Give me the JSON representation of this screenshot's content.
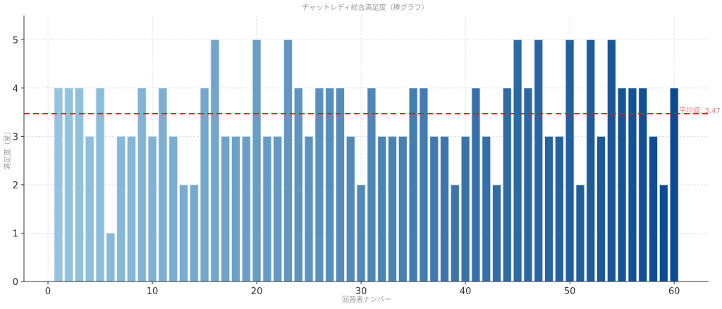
{
  "chart_data": {
    "type": "bar",
    "title": "チャットレディ総合満足度（棒グラフ）",
    "xlabel": "回答者ナンバー",
    "ylabel": "満足度（星）",
    "x": [
      1,
      2,
      3,
      4,
      5,
      6,
      7,
      8,
      9,
      10,
      11,
      12,
      13,
      14,
      15,
      16,
      17,
      18,
      19,
      20,
      21,
      22,
      23,
      24,
      25,
      26,
      27,
      28,
      29,
      30,
      31,
      32,
      33,
      34,
      35,
      36,
      37,
      38,
      39,
      40,
      41,
      42,
      43,
      44,
      45,
      46,
      47,
      48,
      49,
      50,
      51,
      52,
      53,
      54,
      55,
      56,
      57,
      58,
      59,
      60
    ],
    "values": [
      4,
      4,
      4,
      3,
      4,
      1,
      3,
      3,
      4,
      3,
      4,
      3,
      2,
      2,
      4,
      5,
      3,
      3,
      3,
      5,
      3,
      3,
      5,
      4,
      3,
      4,
      4,
      4,
      3,
      2,
      4,
      3,
      3,
      3,
      4,
      4,
      3,
      3,
      2,
      3,
      4,
      3,
      2,
      4,
      5,
      4,
      5,
      3,
      3,
      5,
      2,
      5,
      3,
      5,
      4,
      4,
      4,
      3,
      2,
      4
    ],
    "xlim": [
      -2.3,
      63.3
    ],
    "ylim": [
      0,
      5.5
    ],
    "xticks": [
      0,
      10,
      20,
      30,
      40,
      50,
      60
    ],
    "yticks": [
      0,
      1,
      2,
      3,
      4,
      5
    ],
    "grid": true,
    "mean_line": {
      "value": 3.47,
      "label": "平均値: 3.47",
      "color": "#e8141c",
      "style": "dashed"
    },
    "colormap": {
      "name": "Blues",
      "start": "#94c4df",
      "end": "#0a4a8f"
    },
    "legend": null
  }
}
